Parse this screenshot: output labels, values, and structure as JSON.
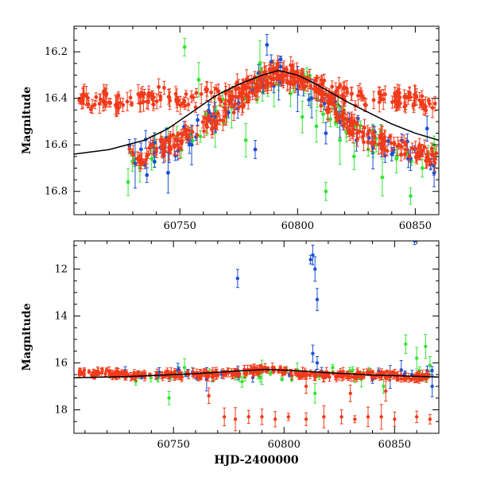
{
  "chart_data": [
    {
      "type": "scatter",
      "panel": "top",
      "title": "",
      "xlabel": "",
      "ylabel": "Magnitude",
      "xlim": [
        60705,
        60860
      ],
      "ylim": [
        16.9,
        16.09
      ],
      "y_inverted": true,
      "xticks": [
        60750,
        60800,
        60850
      ],
      "yticks": [
        16.2,
        16.4,
        16.6,
        16.8
      ],
      "grid": false,
      "colors": {
        "green": "#33e633",
        "blue": "#1a4fd6",
        "red": "#f23a1a",
        "model": "#000000"
      },
      "series": [
        {
          "color": "#f23a1a",
          "description": "baseline plateau",
          "points": [
            [
              60707,
              16.41
            ],
            [
              60712,
              16.42
            ],
            [
              60717,
              16.39
            ],
            [
              60722,
              16.43
            ],
            [
              60728,
              16.4
            ],
            [
              60735,
              16.41
            ],
            [
              60742,
              16.38
            ],
            [
              60749,
              16.4
            ],
            [
              60756,
              16.41
            ],
            [
              60762,
              16.37
            ],
            [
              60768,
              16.4
            ],
            [
              60775,
              16.36
            ],
            [
              60782,
              16.34
            ],
            [
              60790,
              16.3
            ],
            [
              60798,
              16.31
            ],
            [
              60805,
              16.33
            ],
            [
              60812,
              16.36
            ],
            [
              60818,
              16.38
            ],
            [
              60825,
              16.4
            ],
            [
              60832,
              16.41
            ],
            [
              60840,
              16.4
            ],
            [
              60848,
              16.41
            ],
            [
              60855,
              16.42
            ],
            [
              60859,
              16.4
            ]
          ]
        },
        {
          "color": "#f23a1a",
          "description": "event light curve",
          "points": [
            [
              60728,
              16.65
            ],
            [
              60732,
              16.66
            ],
            [
              60736,
              16.63
            ],
            [
              60740,
              16.62
            ],
            [
              60745,
              16.6
            ],
            [
              60750,
              16.58
            ],
            [
              60755,
              16.55
            ],
            [
              60760,
              16.52
            ],
            [
              60765,
              16.49
            ],
            [
              60770,
              16.45
            ],
            [
              60775,
              16.42
            ],
            [
              60780,
              16.38
            ],
            [
              60785,
              16.33
            ],
            [
              60790,
              16.29
            ],
            [
              60795,
              16.28
            ],
            [
              60800,
              16.31
            ],
            [
              60805,
              16.35
            ],
            [
              60810,
              16.4
            ],
            [
              60815,
              16.45
            ],
            [
              60820,
              16.5
            ],
            [
              60825,
              16.54
            ],
            [
              60830,
              16.57
            ],
            [
              60835,
              16.58
            ],
            [
              60840,
              16.6
            ],
            [
              60845,
              16.62
            ],
            [
              60850,
              16.63
            ],
            [
              60855,
              16.64
            ],
            [
              60859,
              16.66
            ]
          ]
        },
        {
          "color": "#33e633",
          "description": "green band",
          "points": [
            [
              60728,
              16.76
            ],
            [
              60733,
              16.7
            ],
            [
              60738,
              16.66
            ],
            [
              60745,
              16.58
            ],
            [
              60752,
              16.18
            ],
            [
              60758,
              16.32
            ],
            [
              60765,
              16.5
            ],
            [
              60772,
              16.44
            ],
            [
              60778,
              16.58
            ],
            [
              60784,
              16.25
            ],
            [
              60790,
              16.34
            ],
            [
              60797,
              16.38
            ],
            [
              60802,
              16.48
            ],
            [
              60808,
              16.52
            ],
            [
              60812,
              16.8
            ],
            [
              60818,
              16.58
            ],
            [
              60824,
              16.65
            ],
            [
              60830,
              16.62
            ],
            [
              60836,
              16.74
            ],
            [
              60842,
              16.66
            ],
            [
              60848,
              16.82
            ],
            [
              60853,
              16.7
            ],
            [
              60858,
              16.6
            ]
          ]
        },
        {
          "color": "#1a4fd6",
          "description": "blue band",
          "points": [
            [
              60731,
              16.68
            ],
            [
              60736,
              16.73
            ],
            [
              60745,
              16.72
            ],
            [
              60755,
              16.6
            ],
            [
              60765,
              16.48
            ],
            [
              60775,
              16.42
            ],
            [
              60782,
              16.62
            ],
            [
              60787,
              16.17
            ],
            [
              60792,
              16.32
            ],
            [
              60800,
              16.36
            ],
            [
              60806,
              16.4
            ],
            [
              60812,
              16.55
            ],
            [
              60818,
              16.5
            ],
            [
              60825,
              16.58
            ],
            [
              60832,
              16.61
            ],
            [
              60840,
              16.64
            ],
            [
              60848,
              16.66
            ],
            [
              60855,
              16.53
            ],
            [
              60858,
              16.72
            ]
          ]
        }
      ],
      "model_curve": [
        [
          60705,
          16.64
        ],
        [
          60720,
          16.62
        ],
        [
          60735,
          16.58
        ],
        [
          60745,
          16.53
        ],
        [
          60755,
          16.46
        ],
        [
          60765,
          16.39
        ],
        [
          60775,
          16.34
        ],
        [
          60785,
          16.3
        ],
        [
          60792,
          16.28
        ],
        [
          60800,
          16.3
        ],
        [
          60808,
          16.34
        ],
        [
          60815,
          16.38
        ],
        [
          60822,
          16.42
        ],
        [
          60830,
          16.46
        ],
        [
          60840,
          16.51
        ],
        [
          60850,
          16.55
        ],
        [
          60860,
          16.58
        ]
      ]
    },
    {
      "type": "scatter",
      "panel": "bottom",
      "title": "",
      "xlabel": "HJD-2400000",
      "ylabel": "Magnitude",
      "xlim": [
        60705,
        60870
      ],
      "ylim": [
        19.0,
        10.8
      ],
      "y_inverted": true,
      "xticks": [
        60750,
        60800,
        60850
      ],
      "yticks": [
        12,
        14,
        16,
        18
      ],
      "grid": false,
      "colors": {
        "green": "#33e633",
        "blue": "#1a4fd6",
        "red": "#f23a1a",
        "model": "#000000"
      },
      "series": [
        {
          "color": "#f23a1a",
          "description": "main light curve",
          "points": [
            [
              60707,
              16.4
            ],
            [
              60712,
              16.4
            ],
            [
              60717,
              16.4
            ],
            [
              60722,
              16.4
            ],
            [
              60727,
              16.5
            ],
            [
              60732,
              16.5
            ],
            [
              60737,
              16.5
            ],
            [
              60742,
              16.5
            ],
            [
              60747,
              16.5
            ],
            [
              60752,
              16.5
            ],
            [
              60757,
              16.5
            ],
            [
              60762,
              16.5
            ],
            [
              60767,
              16.5
            ],
            [
              60772,
              16.4
            ],
            [
              60777,
              16.4
            ],
            [
              60782,
              16.4
            ],
            [
              60787,
              16.3
            ],
            [
              60792,
              16.3
            ],
            [
              60797,
              16.3
            ],
            [
              60802,
              16.4
            ],
            [
              60807,
              16.5
            ],
            [
              60812,
              16.5
            ],
            [
              60817,
              16.5
            ],
            [
              60822,
              16.5
            ],
            [
              60827,
              16.5
            ],
            [
              60832,
              16.5
            ],
            [
              60837,
              16.5
            ],
            [
              60842,
              16.5
            ],
            [
              60847,
              16.5
            ],
            [
              60852,
              16.6
            ],
            [
              60857,
              16.6
            ],
            [
              60862,
              16.6
            ],
            [
              60866,
              16.6
            ]
          ]
        },
        {
          "color": "#f23a1a",
          "description": "faint outliers",
          "points": [
            [
              60766,
              17.4
            ],
            [
              60773,
              18.3
            ],
            [
              60778,
              18.4
            ],
            [
              60784,
              18.3
            ],
            [
              60790,
              18.3
            ],
            [
              60796,
              18.4
            ],
            [
              60802,
              18.3
            ],
            [
              60810,
              18.4
            ],
            [
              60818,
              18.3
            ],
            [
              60826,
              18.3
            ],
            [
              60832,
              18.4
            ],
            [
              60838,
              18.3
            ],
            [
              60844,
              18.3
            ],
            [
              60850,
              18.4
            ],
            [
              60860,
              18.3
            ],
            [
              60866,
              18.4
            ],
            [
              60810,
              17.0
            ],
            [
              60830,
              17.3
            ],
            [
              60846,
              17.2
            ]
          ]
        },
        {
          "color": "#33e633",
          "description": "green band",
          "points": [
            [
              60733,
              16.8
            ],
            [
              60748,
              17.5
            ],
            [
              60755,
              16.2
            ],
            [
              60768,
              16.6
            ],
            [
              60781,
              16.8
            ],
            [
              60790,
              16.4
            ],
            [
              60806,
              16.3
            ],
            [
              60814,
              17.3
            ],
            [
              60822,
              16.2
            ],
            [
              60835,
              16.7
            ],
            [
              60845,
              17.0
            ],
            [
              60855,
              15.2
            ],
            [
              60860,
              15.8
            ],
            [
              60864,
              15.3
            ],
            [
              60866,
              16.1
            ]
          ]
        },
        {
          "color": "#1a4fd6",
          "description": "blue band",
          "points": [
            [
              60779,
              12.4
            ],
            [
              60812,
              11.6
            ],
            [
              60813,
              11.4
            ],
            [
              60814,
              12.0
            ],
            [
              60815,
              13.3
            ],
            [
              60813,
              15.6
            ],
            [
              60815,
              16.0
            ],
            [
              60840,
              16.7
            ],
            [
              60848,
              16.6
            ],
            [
              60853,
              16.3
            ],
            [
              60859,
              10.8
            ],
            [
              60867,
              17.0
            ],
            [
              60752,
              16.3
            ],
            [
              60765,
              16.7
            ]
          ]
        }
      ],
      "model_curve": [
        [
          60705,
          16.63
        ],
        [
          60730,
          16.58
        ],
        [
          60760,
          16.46
        ],
        [
          60780,
          16.34
        ],
        [
          60792,
          16.28
        ],
        [
          60805,
          16.33
        ],
        [
          60820,
          16.42
        ],
        [
          60840,
          16.52
        ],
        [
          60870,
          16.6
        ]
      ]
    }
  ]
}
